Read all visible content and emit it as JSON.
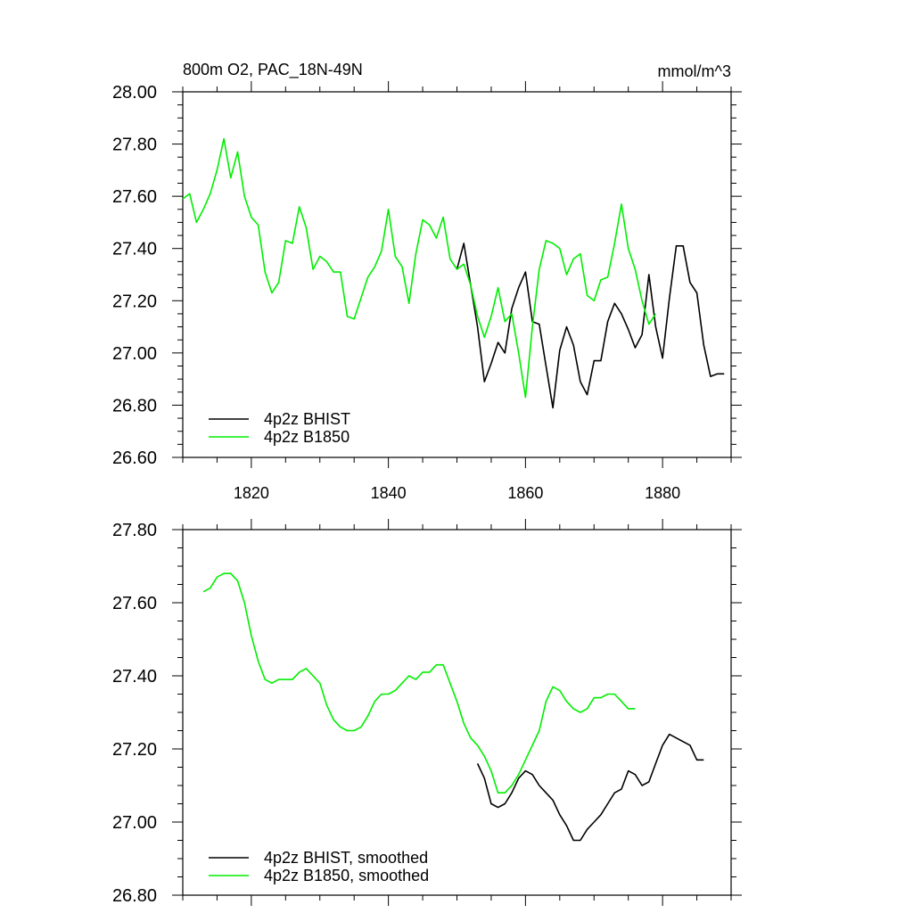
{
  "chart_data": [
    {
      "type": "line",
      "title": "800m O2, PAC_18N-49N",
      "units": "mmol/m^3",
      "xlim": [
        1810,
        1890
      ],
      "ylim": [
        26.6,
        28.0
      ],
      "x_ticks": [
        1820,
        1840,
        1860,
        1880
      ],
      "x_tick_labels": [
        "1820",
        "1840",
        "1860",
        "1880"
      ],
      "y_ticks": [
        26.6,
        26.8,
        27.0,
        27.2,
        27.4,
        27.6,
        27.8,
        28.0
      ],
      "y_tick_labels": [
        "26.60",
        "26.80",
        "27.00",
        "27.20",
        "27.40",
        "27.60",
        "27.80",
        "28.00"
      ],
      "legend_position": "bottom-left",
      "series": [
        {
          "name": "4p2z BHIST",
          "color": "#000000",
          "x": [
            1850,
            1851,
            1852,
            1853,
            1854,
            1855,
            1856,
            1857,
            1858,
            1859,
            1860,
            1861,
            1862,
            1863,
            1864,
            1865,
            1866,
            1867,
            1868,
            1869,
            1870,
            1871,
            1872,
            1873,
            1874,
            1875,
            1876,
            1877,
            1878,
            1879,
            1880,
            1881,
            1882,
            1883,
            1884,
            1885,
            1886,
            1887,
            1888,
            1889
          ],
          "values": [
            27.32,
            27.42,
            27.26,
            27.1,
            26.89,
            26.96,
            27.04,
            27.0,
            27.17,
            27.25,
            27.31,
            27.12,
            27.11,
            26.95,
            26.79,
            27.01,
            27.1,
            27.03,
            26.89,
            26.84,
            26.97,
            26.97,
            27.12,
            27.19,
            27.15,
            27.09,
            27.02,
            27.07,
            27.3,
            27.1,
            26.98,
            27.21,
            27.41,
            27.41,
            27.27,
            27.23,
            27.03,
            26.91,
            26.92,
            26.92
          ]
        },
        {
          "name": "4p2z B1850",
          "color": "#00ee00",
          "x": [
            1810,
            1811,
            1812,
            1813,
            1814,
            1815,
            1816,
            1817,
            1818,
            1819,
            1820,
            1821,
            1822,
            1823,
            1824,
            1825,
            1826,
            1827,
            1828,
            1829,
            1830,
            1831,
            1832,
            1833,
            1834,
            1835,
            1836,
            1837,
            1838,
            1839,
            1840,
            1841,
            1842,
            1843,
            1844,
            1845,
            1846,
            1847,
            1848,
            1849,
            1850,
            1851,
            1852,
            1853,
            1854,
            1855,
            1856,
            1857,
            1858,
            1859,
            1860,
            1861,
            1862,
            1863,
            1864,
            1865,
            1866,
            1867,
            1868,
            1869,
            1870,
            1871,
            1872,
            1873,
            1874,
            1875,
            1876,
            1877,
            1878,
            1879
          ],
          "values": [
            27.59,
            27.61,
            27.5,
            27.55,
            27.61,
            27.7,
            27.82,
            27.67,
            27.77,
            27.6,
            27.52,
            27.49,
            27.31,
            27.23,
            27.27,
            27.43,
            27.42,
            27.56,
            27.48,
            27.32,
            27.37,
            27.35,
            27.31,
            27.31,
            27.14,
            27.13,
            27.21,
            27.29,
            27.33,
            27.39,
            27.55,
            27.37,
            27.33,
            27.19,
            27.38,
            27.51,
            27.49,
            27.44,
            27.52,
            27.36,
            27.32,
            27.34,
            27.26,
            27.14,
            27.06,
            27.14,
            27.25,
            27.12,
            27.15,
            27.0,
            26.83,
            27.1,
            27.32,
            27.43,
            27.42,
            27.4,
            27.3,
            27.36,
            27.38,
            27.22,
            27.2,
            27.28,
            27.29,
            27.42,
            27.57,
            27.4,
            27.32,
            27.2,
            27.11,
            27.15
          ]
        }
      ]
    },
    {
      "type": "line",
      "title": "",
      "units": "",
      "xlim": [
        1810,
        1890
      ],
      "ylim": [
        26.8,
        27.8
      ],
      "x_ticks": [
        1820,
        1840,
        1860,
        1880
      ],
      "x_tick_labels": [],
      "y_ticks": [
        26.8,
        27.0,
        27.2,
        27.4,
        27.6,
        27.8
      ],
      "y_tick_labels": [
        "26.80",
        "27.00",
        "27.20",
        "27.40",
        "27.60",
        "27.80"
      ],
      "legend_position": "bottom-left",
      "series": [
        {
          "name": "4p2z BHIST, smoothed",
          "color": "#000000",
          "x": [
            1853,
            1854,
            1855,
            1856,
            1857,
            1858,
            1859,
            1860,
            1861,
            1862,
            1863,
            1864,
            1865,
            1866,
            1867,
            1868,
            1869,
            1870,
            1871,
            1872,
            1873,
            1874,
            1875,
            1876,
            1877,
            1878,
            1879,
            1880,
            1881,
            1882,
            1883,
            1884,
            1885,
            1886
          ],
          "values": [
            27.16,
            27.12,
            27.05,
            27.04,
            27.05,
            27.08,
            27.12,
            27.14,
            27.13,
            27.1,
            27.08,
            27.06,
            27.02,
            26.99,
            26.95,
            26.95,
            26.98,
            27.0,
            27.02,
            27.05,
            27.08,
            27.09,
            27.14,
            27.13,
            27.1,
            27.11,
            27.16,
            27.21,
            27.24,
            27.23,
            27.22,
            27.21,
            27.17,
            27.17
          ]
        },
        {
          "name": "4p2z B1850, smoothed",
          "color": "#00ee00",
          "x": [
            1813,
            1814,
            1815,
            1816,
            1817,
            1818,
            1819,
            1820,
            1821,
            1822,
            1823,
            1824,
            1825,
            1826,
            1827,
            1828,
            1829,
            1830,
            1831,
            1832,
            1833,
            1834,
            1835,
            1836,
            1837,
            1838,
            1839,
            1840,
            1841,
            1842,
            1843,
            1844,
            1845,
            1846,
            1847,
            1848,
            1849,
            1850,
            1851,
            1852,
            1853,
            1854,
            1855,
            1856,
            1857,
            1858,
            1859,
            1860,
            1861,
            1862,
            1863,
            1864,
            1865,
            1866,
            1867,
            1868,
            1869,
            1870,
            1871,
            1872,
            1873,
            1874,
            1875,
            1876
          ],
          "values": [
            27.63,
            27.64,
            27.67,
            27.68,
            27.68,
            27.66,
            27.6,
            27.51,
            27.44,
            27.39,
            27.38,
            27.39,
            27.39,
            27.39,
            27.41,
            27.42,
            27.4,
            27.38,
            27.32,
            27.28,
            27.26,
            27.25,
            27.25,
            27.26,
            27.29,
            27.33,
            27.35,
            27.35,
            27.36,
            27.38,
            27.4,
            27.39,
            27.41,
            27.41,
            27.43,
            27.43,
            27.38,
            27.33,
            27.27,
            27.23,
            27.21,
            27.18,
            27.14,
            27.08,
            27.08,
            27.1,
            27.13,
            27.17,
            27.21,
            27.25,
            27.33,
            27.37,
            27.36,
            27.33,
            27.31,
            27.3,
            27.31,
            27.34,
            27.34,
            27.35,
            27.35,
            27.33,
            27.31,
            27.31
          ]
        }
      ]
    }
  ]
}
